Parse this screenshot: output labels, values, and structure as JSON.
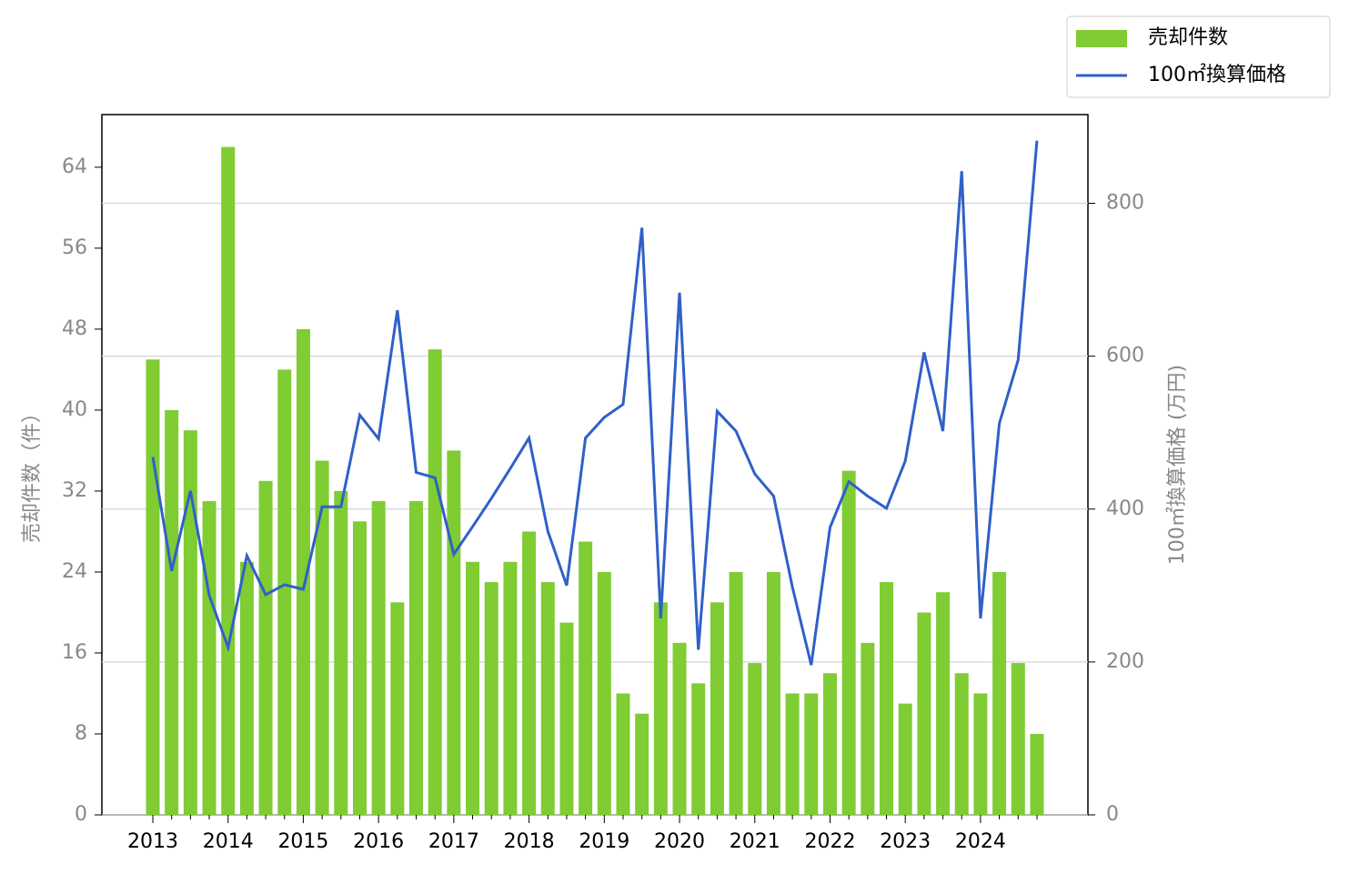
{
  "chart_data": {
    "type": "bar",
    "categories": [
      "2013",
      null,
      null,
      null,
      "2014",
      null,
      null,
      null,
      "2015",
      null,
      null,
      null,
      "2016",
      null,
      null,
      null,
      "2017",
      null,
      null,
      null,
      "2018",
      null,
      null,
      null,
      "2019",
      null,
      null,
      null,
      "2020",
      null,
      null,
      null,
      "2021",
      null,
      null,
      null,
      "2022",
      null,
      null,
      null,
      "2023",
      null,
      null,
      null,
      "2024",
      null,
      null,
      null
    ],
    "series": [
      {
        "name": "売却件数",
        "type": "bar",
        "color": "#7fcc33",
        "values": [
          45,
          40,
          38,
          31,
          66,
          25,
          33,
          44,
          48,
          35,
          32,
          29,
          31,
          21,
          31,
          46,
          36,
          25,
          23,
          25,
          28,
          23,
          19,
          27,
          24,
          12,
          10,
          21,
          17,
          13,
          21,
          24,
          15,
          24,
          12,
          12,
          14,
          34,
          17,
          23,
          11,
          20,
          22,
          14,
          12,
          24,
          15,
          8
        ]
      },
      {
        "name": "100㎡換算価格",
        "type": "line",
        "color": "#3060c8",
        "axis": "y2",
        "values": [
          468,
          319,
          424,
          287,
          219,
          339,
          288,
          301,
          295,
          403,
          403,
          523,
          492,
          660,
          448,
          441,
          341,
          377,
          414,
          453,
          493,
          371,
          300,
          493,
          520,
          537,
          768,
          257,
          683,
          216,
          528,
          502,
          446,
          417,
          298,
          196,
          376,
          436,
          417,
          401,
          463,
          605,
          502,
          842,
          257,
          512,
          595,
          882
        ]
      }
    ],
    "ylabel": "売却件数（件）",
    "y2label": "100㎡換算価格 (万円)",
    "ylim": [
      0,
      69.2
    ],
    "yticks": [
      0,
      8,
      16,
      24,
      32,
      40,
      48,
      56,
      64
    ],
    "y2lim": [
      0,
      916
    ],
    "y2ticks": [
      0,
      200,
      400,
      600,
      800
    ],
    "grid": true,
    "legend": "upper right"
  }
}
